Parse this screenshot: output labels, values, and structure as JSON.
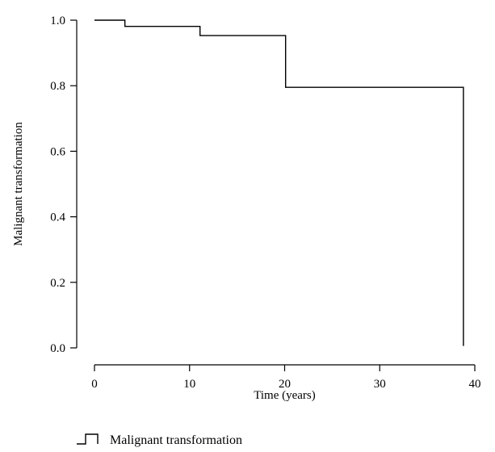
{
  "chart_data": {
    "type": "line",
    "subtype": "step",
    "title": "",
    "xlabel": "Time (years)",
    "ylabel": "Malignant transformation",
    "xlim": [
      -3,
      42
    ],
    "ylim": [
      -0.02,
      1.03
    ],
    "xticks": [
      0,
      10,
      20,
      30,
      40
    ],
    "xtick_labels": [
      "0",
      "10",
      "20",
      "30",
      "40"
    ],
    "yticks": [
      0.0,
      0.2,
      0.4,
      0.6,
      0.8,
      1.0
    ],
    "ytick_labels": [
      "0.0",
      "0.2",
      "0.4",
      "0.6",
      "0.8",
      "1.0"
    ],
    "grid": false,
    "legend_position": "bottom-left",
    "series": [
      {
        "name": "Malignant transformation",
        "color": "#000000",
        "points": [
          {
            "x": 0,
            "y": 1.0
          },
          {
            "x": 3.2,
            "y": 0.981
          },
          {
            "x": 11.1,
            "y": 0.953
          },
          {
            "x": 20.1,
            "y": 0.795
          },
          {
            "x": 38.8,
            "y": 0.006
          }
        ]
      }
    ]
  }
}
